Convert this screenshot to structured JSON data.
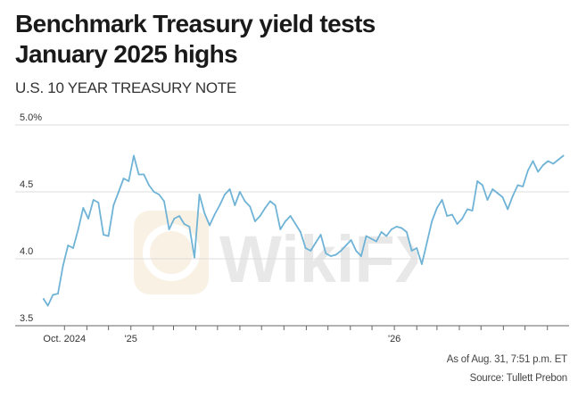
{
  "title_line1": "Benchmark Treasury yield tests",
  "title_line2": "January 2025 highs",
  "subtitle": "U.S. 10 YEAR TREASURY NOTE",
  "footer": {
    "as_of": "As of Aug. 31, 7:51 p.m. ET",
    "source": "Source: Tullett Prebon"
  },
  "watermark_text": "WikiFX",
  "colors": {
    "line": "#6fb3d6",
    "grid": "#dddddd",
    "axis": "#666666"
  },
  "chart_data": {
    "type": "line",
    "title": "Benchmark Treasury yield tests January 2025 highs",
    "subtitle": "U.S. 10 YEAR TREASURY NOTE",
    "xlabel": "",
    "ylabel": "",
    "ylim": [
      3.5,
      5.0
    ],
    "y_ticks": [
      {
        "value": 5.0,
        "label": "5.0%"
      },
      {
        "value": 4.5,
        "label": "4.5"
      },
      {
        "value": 4.0,
        "label": "4.0"
      },
      {
        "value": 3.5,
        "label": "3.5"
      }
    ],
    "x_range": [
      "2024-09-01",
      "2026-08-31"
    ],
    "x_tick_labels": [
      {
        "date": "2024-10-01",
        "label": "Oct. 2024"
      },
      {
        "date": "2025-01-01",
        "label": "'25"
      },
      {
        "date": "2026-01-01",
        "label": "'26"
      }
    ],
    "x_minor_ticks": [
      "2024-10-01",
      "2024-11-01",
      "2024-12-01",
      "2025-01-01",
      "2025-02-01",
      "2025-03-01",
      "2025-04-01",
      "2025-05-01",
      "2025-06-01",
      "2025-07-01",
      "2025-08-01",
      "2025-09-01",
      "2025-10-01",
      "2025-11-01",
      "2025-12-01",
      "2026-01-01",
      "2026-02-01",
      "2026-03-01",
      "2026-04-01",
      "2026-05-01",
      "2026-06-01",
      "2026-07-01",
      "2026-08-01"
    ],
    "grid": true,
    "legend": "none",
    "series": [
      {
        "points": [
          [
            "2024-09-02",
            3.7
          ],
          [
            "2024-09-08",
            3.65
          ],
          [
            "2024-09-15",
            3.73
          ],
          [
            "2024-09-22",
            3.74
          ],
          [
            "2024-09-29",
            3.95
          ],
          [
            "2024-10-06",
            4.1
          ],
          [
            "2024-10-13",
            4.08
          ],
          [
            "2024-10-20",
            4.22
          ],
          [
            "2024-10-27",
            4.38
          ],
          [
            "2024-11-03",
            4.3
          ],
          [
            "2024-11-10",
            4.44
          ],
          [
            "2024-11-17",
            4.42
          ],
          [
            "2024-11-24",
            4.18
          ],
          [
            "2024-12-01",
            4.17
          ],
          [
            "2024-12-08",
            4.4
          ],
          [
            "2024-12-15",
            4.5
          ],
          [
            "2024-12-22",
            4.6
          ],
          [
            "2024-12-29",
            4.58
          ],
          [
            "2025-01-05",
            4.77
          ],
          [
            "2025-01-12",
            4.63
          ],
          [
            "2025-01-19",
            4.63
          ],
          [
            "2025-01-26",
            4.55
          ],
          [
            "2025-02-02",
            4.5
          ],
          [
            "2025-02-09",
            4.48
          ],
          [
            "2025-02-16",
            4.43
          ],
          [
            "2025-02-23",
            4.22
          ],
          [
            "2025-03-02",
            4.3
          ],
          [
            "2025-03-09",
            4.32
          ],
          [
            "2025-03-16",
            4.26
          ],
          [
            "2025-03-23",
            4.24
          ],
          [
            "2025-03-30",
            4.01
          ],
          [
            "2025-04-06",
            4.48
          ],
          [
            "2025-04-13",
            4.34
          ],
          [
            "2025-04-20",
            4.25
          ],
          [
            "2025-04-27",
            4.33
          ],
          [
            "2025-05-04",
            4.4
          ],
          [
            "2025-05-11",
            4.48
          ],
          [
            "2025-05-18",
            4.52
          ],
          [
            "2025-05-25",
            4.4
          ],
          [
            "2025-06-01",
            4.5
          ],
          [
            "2025-06-08",
            4.43
          ],
          [
            "2025-06-15",
            4.39
          ],
          [
            "2025-06-22",
            4.28
          ],
          [
            "2025-06-29",
            4.32
          ],
          [
            "2025-07-06",
            4.38
          ],
          [
            "2025-07-13",
            4.43
          ],
          [
            "2025-07-20",
            4.4
          ],
          [
            "2025-07-27",
            4.22
          ],
          [
            "2025-08-03",
            4.28
          ],
          [
            "2025-08-10",
            4.32
          ],
          [
            "2025-08-17",
            4.26
          ],
          [
            "2025-08-24",
            4.2
          ],
          [
            "2025-08-31",
            4.08
          ],
          [
            "2025-09-07",
            4.06
          ],
          [
            "2025-09-14",
            4.12
          ],
          [
            "2025-09-21",
            4.18
          ],
          [
            "2025-09-28",
            4.04
          ],
          [
            "2025-10-05",
            4.02
          ],
          [
            "2025-10-12",
            4.03
          ],
          [
            "2025-10-19",
            4.06
          ],
          [
            "2025-10-26",
            4.1
          ],
          [
            "2025-11-02",
            4.14
          ],
          [
            "2025-11-09",
            4.06
          ],
          [
            "2025-11-16",
            4.02
          ],
          [
            "2025-11-23",
            4.17
          ],
          [
            "2025-11-30",
            4.15
          ],
          [
            "2025-12-07",
            4.13
          ],
          [
            "2025-12-14",
            4.2
          ],
          [
            "2025-12-21",
            4.17
          ],
          [
            "2025-12-28",
            4.22
          ],
          [
            "2026-01-04",
            4.24
          ],
          [
            "2026-01-11",
            4.23
          ],
          [
            "2026-01-18",
            4.2
          ],
          [
            "2026-01-25",
            4.06
          ],
          [
            "2026-02-01",
            4.08
          ],
          [
            "2026-02-08",
            3.96
          ],
          [
            "2026-02-15",
            4.12
          ],
          [
            "2026-02-22",
            4.28
          ],
          [
            "2026-03-01",
            4.38
          ],
          [
            "2026-03-08",
            4.44
          ],
          [
            "2026-03-15",
            4.32
          ],
          [
            "2026-03-22",
            4.33
          ],
          [
            "2026-03-29",
            4.26
          ],
          [
            "2026-04-05",
            4.3
          ],
          [
            "2026-04-12",
            4.37
          ],
          [
            "2026-04-19",
            4.36
          ],
          [
            "2026-04-26",
            4.58
          ],
          [
            "2026-05-03",
            4.55
          ],
          [
            "2026-05-10",
            4.44
          ],
          [
            "2026-05-17",
            4.52
          ],
          [
            "2026-05-24",
            4.49
          ],
          [
            "2026-05-31",
            4.46
          ],
          [
            "2026-06-07",
            4.37
          ],
          [
            "2026-06-14",
            4.47
          ],
          [
            "2026-06-21",
            4.55
          ],
          [
            "2026-06-28",
            4.54
          ],
          [
            "2026-07-05",
            4.66
          ],
          [
            "2026-07-12",
            4.73
          ],
          [
            "2026-07-19",
            4.65
          ],
          [
            "2026-07-26",
            4.7
          ],
          [
            "2026-08-02",
            4.73
          ],
          [
            "2026-08-09",
            4.71
          ],
          [
            "2026-08-16",
            4.74
          ],
          [
            "2026-08-23",
            4.77
          ]
        ]
      }
    ]
  }
}
